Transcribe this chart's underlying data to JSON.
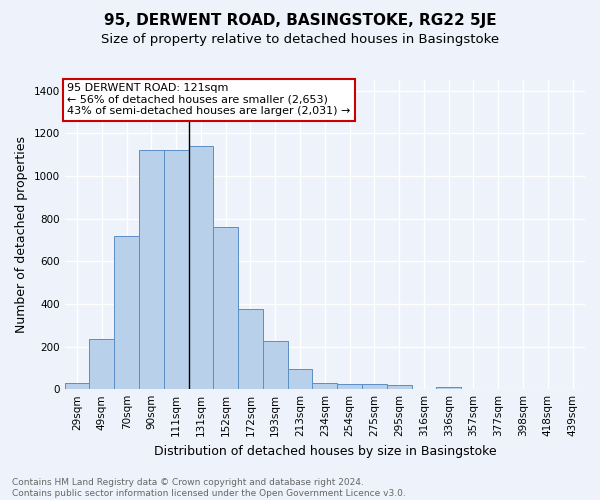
{
  "title": "95, DERWENT ROAD, BASINGSTOKE, RG22 5JE",
  "subtitle": "Size of property relative to detached houses in Basingstoke",
  "xlabel": "Distribution of detached houses by size in Basingstoke",
  "ylabel": "Number of detached properties",
  "categories": [
    "29sqm",
    "49sqm",
    "70sqm",
    "90sqm",
    "111sqm",
    "131sqm",
    "152sqm",
    "172sqm",
    "193sqm",
    "213sqm",
    "234sqm",
    "254sqm",
    "275sqm",
    "295sqm",
    "316sqm",
    "336sqm",
    "357sqm",
    "377sqm",
    "398sqm",
    "418sqm",
    "439sqm"
  ],
  "values": [
    28,
    235,
    720,
    1120,
    1120,
    1140,
    760,
    375,
    225,
    95,
    28,
    22,
    22,
    18,
    0,
    12,
    0,
    0,
    0,
    0,
    0
  ],
  "bar_color": "#b8d0ea",
  "bar_edge_color": "#5b8ec4",
  "background_color": "#eef2fa",
  "grid_color": "#ffffff",
  "annotation_title": "95 DERWENT ROAD: 121sqm",
  "annotation_line1": "← 56% of detached houses are smaller (2,653)",
  "annotation_line2": "43% of semi-detached houses are larger (2,031) →",
  "annotation_box_color": "#ffffff",
  "annotation_box_edge_color": "#cc0000",
  "marker_bar_index": 4,
  "ylim": [
    0,
    1450
  ],
  "yticks": [
    0,
    200,
    400,
    600,
    800,
    1000,
    1200,
    1400
  ],
  "footer_line1": "Contains HM Land Registry data © Crown copyright and database right 2024.",
  "footer_line2": "Contains public sector information licensed under the Open Government Licence v3.0.",
  "title_fontsize": 11,
  "subtitle_fontsize": 9.5,
  "xlabel_fontsize": 9,
  "ylabel_fontsize": 9,
  "tick_fontsize": 7.5,
  "annotation_fontsize": 8,
  "footer_fontsize": 6.5
}
